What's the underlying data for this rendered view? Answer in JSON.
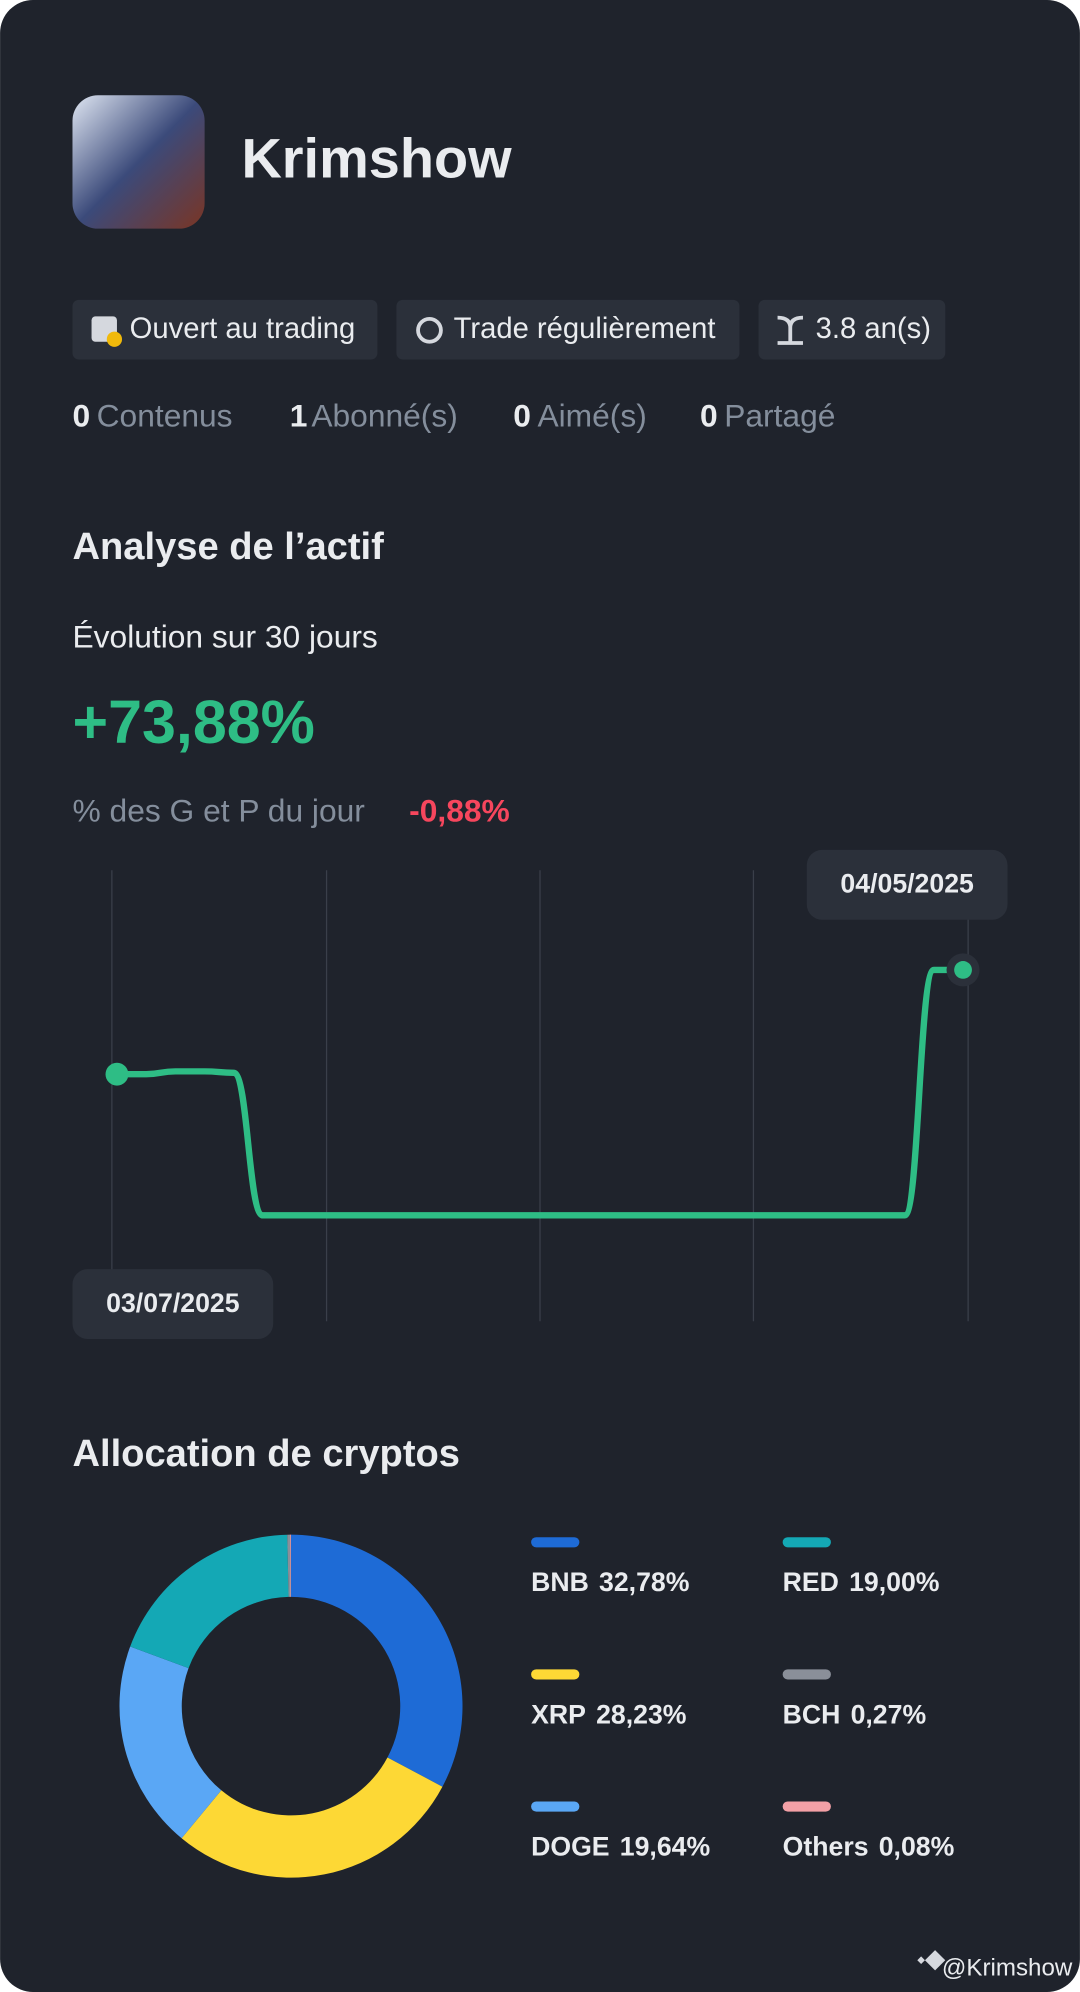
{
  "profile": {
    "name": "Krimshow",
    "badges": [
      "Ouvert au trading",
      "Trade régulièrement",
      "3.8 an(s)"
    ],
    "stats": [
      {
        "count": 0,
        "label": "Contenus"
      },
      {
        "count": 1,
        "label": "Abonné(s)"
      },
      {
        "count": 0,
        "label": "Aimé(s)"
      },
      {
        "count": 0,
        "label": "Partagé"
      }
    ]
  },
  "analysis": {
    "title": "Analyse de l’actif",
    "period": "Évolution sur 30 jours",
    "change": "+73,88%",
    "daily_label": "% des G et P du jour",
    "daily_value": "-0,88%"
  },
  "chart_data": [
    {
      "type": "line",
      "color": "#2ebd85",
      "categories": [
        "03/07/2025",
        null,
        null,
        null,
        null,
        null,
        null,
        null,
        null,
        null,
        null,
        null,
        null,
        null,
        null,
        null,
        null,
        null,
        null,
        null,
        null,
        null,
        null,
        null,
        null,
        null,
        null,
        null,
        null,
        "04/05/2025"
      ],
      "values": [
        0,
        0,
        2,
        2,
        1,
        -100,
        -100,
        -100,
        -100,
        -100,
        -100,
        -100,
        -100,
        -100,
        -100,
        -100,
        -100,
        -100,
        -100,
        -100,
        -100,
        -100,
        -100,
        -100,
        -100,
        -100,
        -100,
        -100,
        73.88,
        73.88
      ],
      "ylim": [
        -175,
        140
      ]
    },
    {
      "type": "pie",
      "title": "Allocation de cryptos",
      "categories": [
        "BNB",
        "XRP",
        "DOGE",
        "RED",
        "BCH",
        "Others"
      ],
      "values": [
        32.78,
        28.23,
        19.64,
        19.0,
        0.27,
        0.08
      ],
      "value_labels": [
        "32,78%",
        "28,23%",
        "19,64%",
        "19,00%",
        "0,27%",
        "0,08%"
      ],
      "colors": [
        "#1e6bd6",
        "#fdd835",
        "#5aa7f5",
        "#14a8b5",
        "#8a8f99",
        "#f3a0a6"
      ]
    }
  ],
  "watermark": "@Krimshow"
}
